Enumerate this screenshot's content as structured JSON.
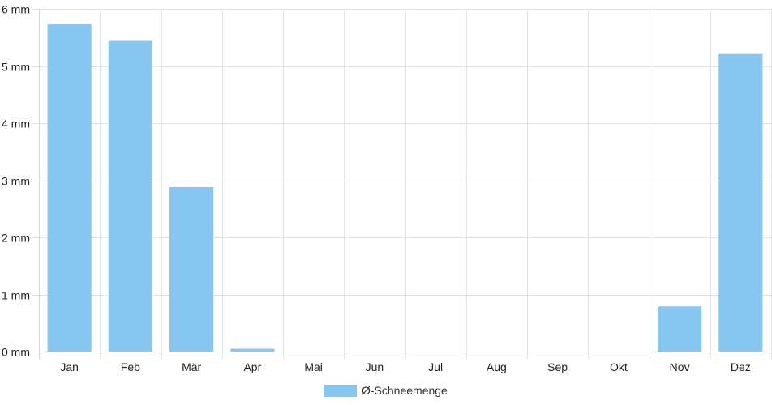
{
  "chart_data": {
    "type": "bar",
    "categories": [
      "Jan",
      "Feb",
      "Mär",
      "Apr",
      "Mai",
      "Jun",
      "Jul",
      "Aug",
      "Sep",
      "Okt",
      "Nov",
      "Dez"
    ],
    "series": [
      {
        "name": "Ø-Schneemenge",
        "values": [
          5.73,
          5.44,
          2.88,
          0.05,
          0,
          0,
          0,
          0,
          0,
          0,
          0.79,
          5.21
        ],
        "color": "#88c6f2"
      }
    ],
    "y_ticks": [
      "0 mm",
      "1 mm",
      "2 mm",
      "3 mm",
      "4 mm",
      "5 mm",
      "6 mm"
    ],
    "ylim": [
      0,
      6
    ],
    "unit": "mm",
    "grid": true,
    "legend_position": "bottom-center",
    "colors": {
      "grid": "#e2e2e2",
      "axis": "#d6d6d6"
    }
  }
}
